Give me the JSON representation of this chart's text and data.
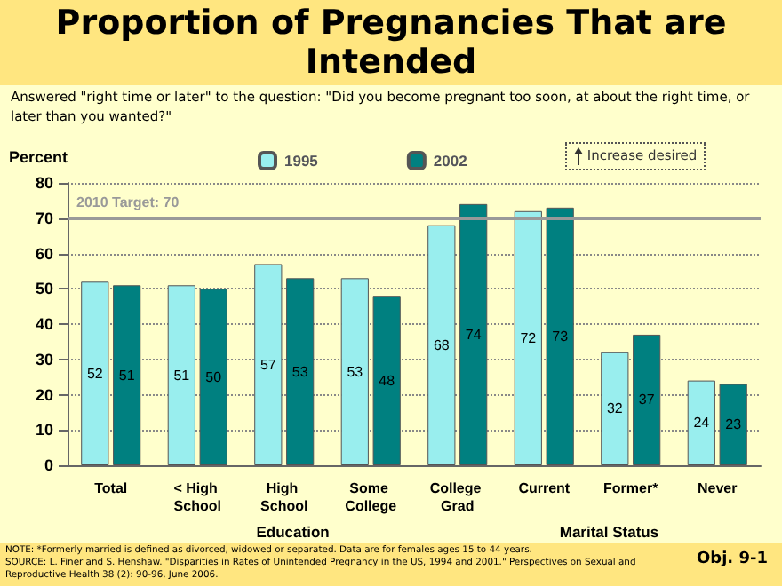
{
  "chart_data": {
    "type": "bar",
    "title": "Proportion of Pregnancies That are Intended",
    "subtitle": "Answered \"right time or later\" to the question: \"Did you become pregnant too soon, at about the right time, or later than you wanted?\"",
    "ylabel": "Percent",
    "categories": [
      "Total",
      "< High School",
      "High School",
      "Some College",
      "College Grad",
      "Current",
      "Former*",
      "Never"
    ],
    "series": [
      {
        "name": "1995",
        "color": "#99eeee",
        "values": [
          52,
          51,
          57,
          53,
          68,
          72,
          32,
          24
        ]
      },
      {
        "name": "2002",
        "color": "#008080",
        "values": [
          51,
          50,
          53,
          48,
          74,
          73,
          37,
          23
        ]
      }
    ],
    "ylim": [
      0,
      80
    ],
    "yticks": [
      0,
      10,
      20,
      30,
      40,
      50,
      60,
      70,
      80
    ],
    "grid": "y",
    "legend": "top",
    "data_labels": true,
    "ref_lines": [
      {
        "axis": "y",
        "value": 70,
        "label": "2010 Target: 70",
        "color": "#999999"
      }
    ],
    "annotations": [
      "Education",
      "Marital Status",
      "Increase desired",
      "NOTE: *Formerly married is defined as divorced, widowed or separated.  Data are for females ages 15 to 44 years.",
      "SOURCE: L. Finer and S. Henshaw. \"Disparities in Rates of Unintended Pregnancy in the US, 1994 and 2001.\" Perspectives on Sexual and Reproductive Health 38 (2): 90-96, June 2006.",
      "Obj. 9-1"
    ]
  }
}
